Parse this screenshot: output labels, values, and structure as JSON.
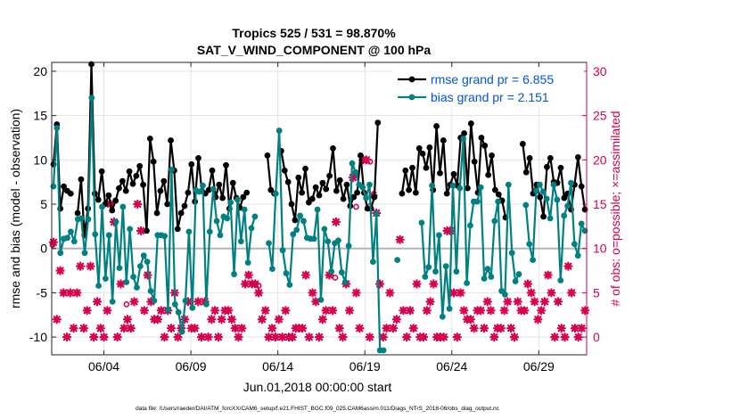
{
  "chart_data": {
    "type": "line",
    "title_line1": "Tropics 525 / 531 = 98.870%",
    "title_line2": "SAT_V_WIND_COMPONENT @ 100 hPa",
    "ylabel_left": "rmse and bias (model - observation)",
    "ylabel_right": "# of obs: o=possible; ×=assimilated",
    "xlabel": "Jun.01,2018 00:00:00 start",
    "footer": "data file: /Users/raeder/DAI/ATM_forcXX/CAM6_setup/f.e21.FHIST_BGC.f09_025.CAM6assim.011/Diags_NTrS_2018-06/obs_diag_output.nc",
    "xlim": [
      1.0,
      31.75
    ],
    "ylim_left": [
      -12,
      21
    ],
    "ylim_right": [
      -2,
      31
    ],
    "x_ticks": [
      4,
      9,
      14,
      19,
      24,
      29
    ],
    "x_tick_labels": [
      "06/04",
      "06/09",
      "06/14",
      "06/19",
      "06/24",
      "06/29"
    ],
    "y_ticks_left": [
      -10,
      -5,
      0,
      5,
      10,
      15,
      20
    ],
    "y_ticks_right": [
      0,
      5,
      10,
      15,
      20,
      25,
      30
    ],
    "colors": {
      "rmse": "#000000",
      "bias": "#008080",
      "obs": "#d6004e",
      "legend_text": "#0055dd",
      "zero_line": "#b4b4b4"
    },
    "series": [
      {
        "name": "rmse grand pr = 6.855",
        "key": "rmse",
        "values": [
          9.5,
          14,
          4.5,
          7,
          6.5,
          6.2,
          null,
          4,
          7.8,
          1.5,
          4.5,
          20.8,
          6.2,
          5.5,
          8.7,
          5,
          6,
          4.3,
          5.4,
          6.8,
          7.6,
          6.5,
          8.7,
          7.3,
          8.2,
          9.3,
          7.2,
          2,
          12.4,
          9.8,
          4,
          6.5,
          7.6,
          5,
          12.2,
          8.8,
          2.2,
          4,
          4.8,
          6.3,
          9.5,
          5.3,
          10.2,
          6.5,
          6.2,
          6.6,
          8.8,
          5.8,
          7.2,
          5.7,
          9.4,
          4.5,
          7.4,
          5.7,
          4.6,
          5.8,
          6.3,
          null,
          null,
          null,
          null,
          null,
          10.5,
          6.6,
          6.2,
          null,
          11,
          8.8,
          7.5,
          5,
          3.2,
          8,
          6.3,
          9,
          5.2,
          5.6,
          6.9,
          6,
          7.4,
          6.7,
          8.2,
          11.3,
          6.5,
          7.7,
          5.6,
          7.2,
          4.8,
          5.8,
          6.3,
          10.5,
          6.3,
          4.5,
          4.5,
          5.8,
          14.2,
          null,
          null,
          null,
          null,
          null,
          null,
          6.2,
          8.8,
          6.6,
          9.1,
          6.3,
          11.3,
          10.7,
          9.1,
          11.4,
          6.6,
          13.8,
          8.5,
          12.2,
          6.2,
          7.2,
          8.4,
          7.1,
          12.5,
          13,
          6.8,
          14.1,
          9.8,
          6.3,
          12.5,
          11.6,
          8.3,
          10.5,
          6.6,
          6.1,
          5.4,
          3.5,
          null,
          null,
          null,
          null,
          11.8,
          8.6,
          10.2,
          6.2,
          7.2,
          5.8,
          3.6,
          9.2,
          10.2,
          7.5,
          7.4,
          9.1,
          5.7,
          6.2,
          4.4,
          7.2,
          10.3,
          7,
          4.4
        ]
      },
      {
        "name": "bias grand pr = 2.151",
        "key": "bias",
        "values": [
          7,
          13.6,
          -0.5,
          1.1,
          1.2,
          1.9,
          0.8,
          3.3,
          3.4,
          -0.5,
          3.3,
          17,
          1.6,
          -4.2,
          4.7,
          -3.4,
          1.5,
          -6,
          3,
          -2.2,
          4.7,
          -3.8,
          2.2,
          -3.2,
          -4.4,
          -2,
          -0.8,
          -1.5,
          -4.8,
          -5.9,
          1.5,
          1.5,
          1.4,
          -6.9,
          8.9,
          -6.3,
          -7.2,
          -9.4,
          -5.9,
          1.9,
          -6.7,
          6.6,
          6.4,
          7.1,
          -6.3,
          1.9,
          6.7,
          3.1,
          1.5,
          3.6,
          3.4,
          5.2,
          -2.9,
          5.5,
          0.8,
          4.4,
          -1.6,
          2.3,
          3.6,
          null,
          null,
          null,
          0.6,
          -2.3,
          6.2,
          13.3,
          -0.2,
          -2.8,
          -4.1,
          1.6,
          2.1,
          3.7,
          3.1,
          1.2,
          1.1,
          1.1,
          4.4,
          -5.8,
          2.2,
          0.8,
          -2.6,
          0.6,
          0.9,
          -2.7,
          -3.8,
          0.3,
          9.6,
          8.6,
          7.2,
          6.9,
          5.7,
          7.2,
          -1.5,
          3.9,
          -11.5,
          -11.5,
          null,
          null,
          null,
          -1.3,
          null,
          null,
          null,
          null,
          null,
          null,
          2.9,
          -3.2,
          -2.1,
          7.1,
          -2.6,
          1.5,
          -7.7,
          -2,
          -6.8,
          7.1,
          -2.6,
          6.8,
          12.4,
          -3.9,
          2.6,
          5.3,
          5.3,
          6.9,
          -3.4,
          -2.3,
          -3.2,
          3.1,
          5.3,
          -4.8,
          -5.2,
          7.2,
          -0.5,
          -3.7,
          -2.9,
          null,
          4.9,
          0.5,
          -1.3,
          6.5,
          7.2,
          6.4,
          5.6,
          3.4,
          7.2,
          5.5,
          -3.6,
          3.7,
          4.8,
          7.4,
          0.5,
          -0.8,
          2.8,
          2
        ]
      }
    ],
    "obs_assimilated": [
      10.7,
      2,
      7.5,
      5,
      0,
      5,
      1,
      5,
      8,
      1,
      3,
      8,
      0,
      4,
      1,
      0,
      3,
      15,
      13,
      0,
      6,
      1,
      2,
      1,
      4,
      15,
      12,
      3,
      7,
      4,
      2,
      2,
      3,
      0,
      3,
      1,
      5,
      0,
      1,
      2,
      4,
      1,
      1,
      4,
      0,
      4,
      0,
      2,
      3,
      0,
      2,
      3,
      3,
      2,
      1,
      0,
      1,
      6,
      7,
      6,
      6,
      5,
      2,
      3,
      0,
      1,
      0,
      2,
      0,
      3,
      0,
      0,
      1,
      1,
      1,
      7,
      0,
      5,
      4,
      0,
      2,
      3,
      7,
      3,
      13,
      1,
      0,
      6,
      3,
      18,
      5,
      1,
      20,
      20,
      0,
      16,
      14,
      6,
      0,
      1,
      5,
      1,
      2,
      11,
      3,
      0,
      3,
      1,
      6,
      0,
      0,
      3,
      4,
      6,
      0,
      0,
      0,
      12,
      12,
      5,
      0,
      5,
      3,
      2,
      2,
      1,
      3,
      3,
      1,
      4,
      3,
      0,
      1,
      1,
      3,
      4,
      1,
      0,
      4,
      3,
      3,
      6,
      5,
      4,
      2,
      3,
      4,
      7,
      5,
      0,
      4,
      1,
      0,
      8,
      5,
      1,
      0,
      1,
      3
    ],
    "obs_possible_markers": [
      {
        "x": 1.05,
        "n": 10.4
      },
      {
        "x": 5.3,
        "n": 3.7
      },
      {
        "x": 12.9,
        "n": 5.8
      },
      {
        "x": 17.3,
        "n": 6.7
      },
      {
        "x": 18.5,
        "n": 14.7
      },
      {
        "x": 19.3,
        "n": 19.8
      },
      {
        "x": 19.3,
        "n": 14.8
      }
    ]
  }
}
